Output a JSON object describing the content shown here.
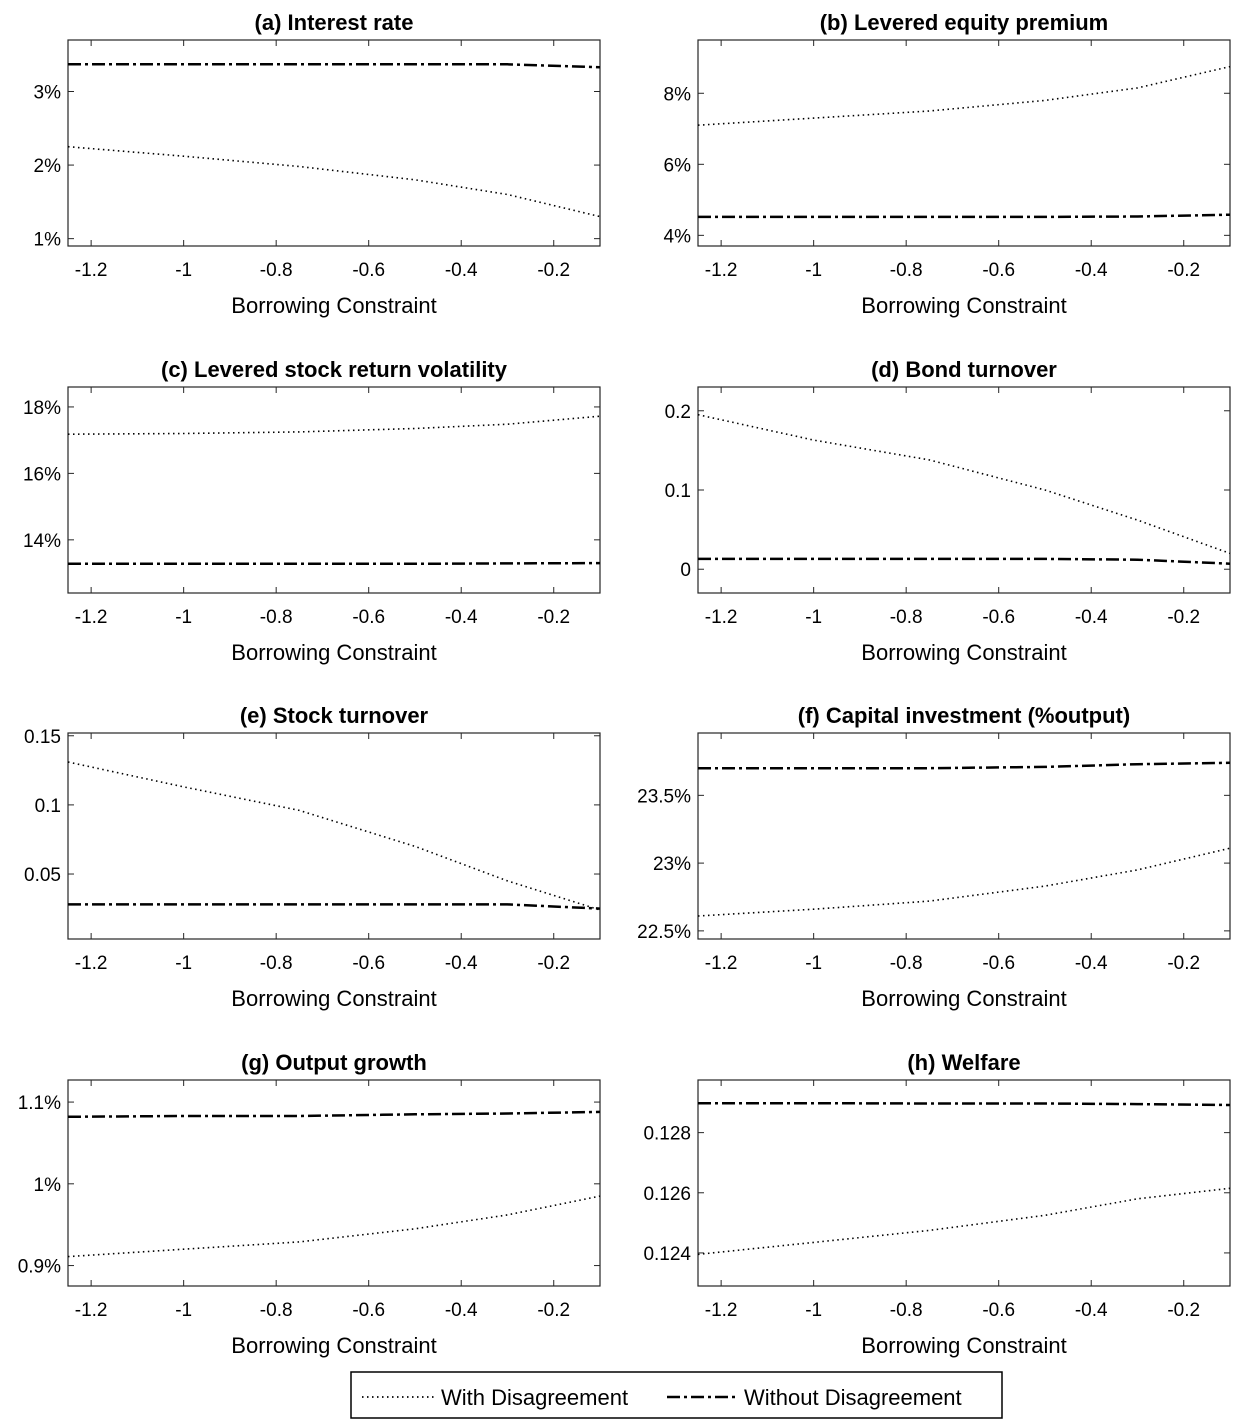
{
  "chart_data": [
    {
      "type": "line",
      "title": "(a) Interest rate",
      "xlabel": "Borrowing Constraint",
      "xlim": [
        -1.25,
        -0.1
      ],
      "ylim": [
        0.9,
        3.7
      ],
      "xticks": [
        -1.2,
        -1,
        -0.8,
        -0.6,
        -0.4,
        -0.2
      ],
      "xtick_labels": [
        "-1.2",
        "-1",
        "-0.8",
        "-0.6",
        "-0.4",
        "-0.2"
      ],
      "yticks": [
        1,
        2,
        3
      ],
      "ytick_labels": [
        "1%",
        "2%",
        "3%"
      ],
      "series": [
        {
          "name": "With Disagreement",
          "style": "dotted",
          "x": [
            -1.25,
            -1.0,
            -0.75,
            -0.5,
            -0.3,
            -0.1
          ],
          "y": [
            2.25,
            2.12,
            1.98,
            1.8,
            1.6,
            1.3
          ]
        },
        {
          "name": "Without Disagreement",
          "style": "dashdot",
          "x": [
            -1.25,
            -1.0,
            -0.75,
            -0.5,
            -0.3,
            -0.1
          ],
          "y": [
            3.37,
            3.37,
            3.37,
            3.37,
            3.37,
            3.33
          ]
        }
      ]
    },
    {
      "type": "line",
      "title": "(b) Levered equity premium",
      "xlabel": "Borrowing Constraint",
      "xlim": [
        -1.25,
        -0.1
      ],
      "ylim": [
        3.7,
        9.5
      ],
      "xticks": [
        -1.2,
        -1,
        -0.8,
        -0.6,
        -0.4,
        -0.2
      ],
      "xtick_labels": [
        "-1.2",
        "-1",
        "-0.8",
        "-0.6",
        "-0.4",
        "-0.2"
      ],
      "yticks": [
        4,
        6,
        8
      ],
      "ytick_labels": [
        "4%",
        "6%",
        "8%"
      ],
      "series": [
        {
          "name": "With Disagreement",
          "style": "dotted",
          "x": [
            -1.25,
            -1.0,
            -0.75,
            -0.5,
            -0.3,
            -0.1
          ],
          "y": [
            7.1,
            7.3,
            7.5,
            7.8,
            8.15,
            8.75
          ]
        },
        {
          "name": "Without Disagreement",
          "style": "dashdot",
          "x": [
            -1.25,
            -1.0,
            -0.75,
            -0.5,
            -0.3,
            -0.1
          ],
          "y": [
            4.52,
            4.52,
            4.52,
            4.52,
            4.53,
            4.58
          ]
        }
      ]
    },
    {
      "type": "line",
      "title": "(c) Levered stock return volatility",
      "xlabel": "Borrowing Constraint",
      "xlim": [
        -1.25,
        -0.1
      ],
      "ylim": [
        12.4,
        18.6
      ],
      "xticks": [
        -1.2,
        -1,
        -0.8,
        -0.6,
        -0.4,
        -0.2
      ],
      "xtick_labels": [
        "-1.2",
        "-1",
        "-0.8",
        "-0.6",
        "-0.4",
        "-0.2"
      ],
      "yticks": [
        14,
        16,
        18
      ],
      "ytick_labels": [
        "14%",
        "16%",
        "18%"
      ],
      "series": [
        {
          "name": "With Disagreement",
          "style": "dotted",
          "x": [
            -1.25,
            -1.0,
            -0.75,
            -0.5,
            -0.3,
            -0.1
          ],
          "y": [
            17.18,
            17.2,
            17.25,
            17.35,
            17.48,
            17.72
          ]
        },
        {
          "name": "Without Disagreement",
          "style": "dashdot",
          "x": [
            -1.25,
            -1.0,
            -0.75,
            -0.5,
            -0.3,
            -0.1
          ],
          "y": [
            13.28,
            13.28,
            13.28,
            13.28,
            13.29,
            13.3
          ]
        }
      ]
    },
    {
      "type": "line",
      "title": "(d) Bond turnover",
      "xlabel": "Borrowing Constraint",
      "xlim": [
        -1.25,
        -0.1
      ],
      "ylim": [
        -0.03,
        0.23
      ],
      "xticks": [
        -1.2,
        -1,
        -0.8,
        -0.6,
        -0.4,
        -0.2
      ],
      "xtick_labels": [
        "-1.2",
        "-1",
        "-0.8",
        "-0.6",
        "-0.4",
        "-0.2"
      ],
      "yticks": [
        0,
        0.1,
        0.2
      ],
      "ytick_labels": [
        "0",
        "0.1",
        "0.2"
      ],
      "series": [
        {
          "name": "With Disagreement",
          "style": "dotted",
          "x": [
            -1.25,
            -1.0,
            -0.75,
            -0.5,
            -0.3,
            -0.1
          ],
          "y": [
            0.195,
            0.163,
            0.138,
            0.1,
            0.062,
            0.02
          ]
        },
        {
          "name": "Without Disagreement",
          "style": "dashdot",
          "x": [
            -1.25,
            -1.0,
            -0.75,
            -0.5,
            -0.3,
            -0.1
          ],
          "y": [
            0.013,
            0.013,
            0.013,
            0.013,
            0.012,
            0.007
          ]
        }
      ]
    },
    {
      "type": "line",
      "title": "(e) Stock turnover",
      "xlabel": "Borrowing Constraint",
      "xlim": [
        -1.25,
        -0.1
      ],
      "ylim": [
        0.003,
        0.152
      ],
      "xticks": [
        -1.2,
        -1,
        -0.8,
        -0.6,
        -0.4,
        -0.2
      ],
      "xtick_labels": [
        "-1.2",
        "-1",
        "-0.8",
        "-0.6",
        "-0.4",
        "-0.2"
      ],
      "yticks": [
        0.05,
        0.1,
        0.15
      ],
      "ytick_labels": [
        "0.05",
        "0.1",
        "0.15"
      ],
      "series": [
        {
          "name": "With Disagreement",
          "style": "dotted",
          "x": [
            -1.25,
            -1.0,
            -0.75,
            -0.5,
            -0.3,
            -0.1
          ],
          "y": [
            0.131,
            0.113,
            0.096,
            0.07,
            0.045,
            0.024
          ]
        },
        {
          "name": "Without Disagreement",
          "style": "dashdot",
          "x": [
            -1.25,
            -1.0,
            -0.75,
            -0.5,
            -0.3,
            -0.1
          ],
          "y": [
            0.028,
            0.028,
            0.028,
            0.028,
            0.028,
            0.025
          ]
        }
      ]
    },
    {
      "type": "line",
      "title": "(f) Capital investment (%output)",
      "xlabel": "Borrowing Constraint",
      "xlim": [
        -1.25,
        -0.1
      ],
      "ylim": [
        22.44,
        23.96
      ],
      "xticks": [
        -1.2,
        -1,
        -0.8,
        -0.6,
        -0.4,
        -0.2
      ],
      "xtick_labels": [
        "-1.2",
        "-1",
        "-0.8",
        "-0.6",
        "-0.4",
        "-0.2"
      ],
      "yticks": [
        22.5,
        23,
        23.5
      ],
      "ytick_labels": [
        "22.5%",
        "23%",
        "23.5%"
      ],
      "series": [
        {
          "name": "With Disagreement",
          "style": "dotted",
          "x": [
            -1.25,
            -1.0,
            -0.75,
            -0.5,
            -0.3,
            -0.1
          ],
          "y": [
            22.61,
            22.66,
            22.72,
            22.83,
            22.95,
            23.11
          ]
        },
        {
          "name": "Without Disagreement",
          "style": "dashdot",
          "x": [
            -1.25,
            -1.0,
            -0.75,
            -0.5,
            -0.3,
            -0.1
          ],
          "y": [
            23.7,
            23.7,
            23.7,
            23.71,
            23.73,
            23.74
          ]
        }
      ]
    },
    {
      "type": "line",
      "title": "(g) Output growth",
      "xlabel": "Borrowing Constraint",
      "xlim": [
        -1.25,
        -0.1
      ],
      "ylim": [
        0.875,
        1.127
      ],
      "xticks": [
        -1.2,
        -1,
        -0.8,
        -0.6,
        -0.4,
        -0.2
      ],
      "xtick_labels": [
        "-1.2",
        "-1",
        "-0.8",
        "-0.6",
        "-0.4",
        "-0.2"
      ],
      "yticks": [
        0.9,
        1.0,
        1.1
      ],
      "ytick_labels": [
        "0.9%",
        "1%",
        "1.1%"
      ],
      "series": [
        {
          "name": "With Disagreement",
          "style": "dotted",
          "x": [
            -1.25,
            -1.0,
            -0.75,
            -0.5,
            -0.3,
            -0.1
          ],
          "y": [
            0.911,
            0.92,
            0.929,
            0.945,
            0.962,
            0.985
          ]
        },
        {
          "name": "Without Disagreement",
          "style": "dashdot",
          "x": [
            -1.25,
            -1.0,
            -0.75,
            -0.5,
            -0.3,
            -0.1
          ],
          "y": [
            1.082,
            1.083,
            1.083,
            1.085,
            1.086,
            1.088
          ]
        }
      ]
    },
    {
      "type": "line",
      "title": "(h) Welfare",
      "xlabel": "Borrowing Constraint",
      "xlim": [
        -1.25,
        -0.1
      ],
      "ylim": [
        0.1229,
        0.12975
      ],
      "xticks": [
        -1.2,
        -1,
        -0.8,
        -0.6,
        -0.4,
        -0.2
      ],
      "xtick_labels": [
        "-1.2",
        "-1",
        "-0.8",
        "-0.6",
        "-0.4",
        "-0.2"
      ],
      "yticks": [
        0.124,
        0.126,
        0.128
      ],
      "ytick_labels": [
        "0.124",
        "0.126",
        "0.128"
      ],
      "series": [
        {
          "name": "With Disagreement",
          "style": "dotted",
          "x": [
            -1.25,
            -1.0,
            -0.75,
            -0.5,
            -0.3,
            -0.1
          ],
          "y": [
            0.12395,
            0.12435,
            0.12475,
            0.12525,
            0.1258,
            0.12615
          ]
        },
        {
          "name": "Without Disagreement",
          "style": "dashdot",
          "x": [
            -1.25,
            -1.0,
            -0.75,
            -0.5,
            -0.3,
            -0.1
          ],
          "y": [
            0.12898,
            0.12898,
            0.12897,
            0.12897,
            0.12895,
            0.12892
          ]
        }
      ]
    }
  ],
  "legend": {
    "position": "bottom-center",
    "entries": [
      {
        "label": "With Disagreement",
        "style": "dotted"
      },
      {
        "label": "Without Disagreement",
        "style": "dashdot"
      }
    ]
  }
}
